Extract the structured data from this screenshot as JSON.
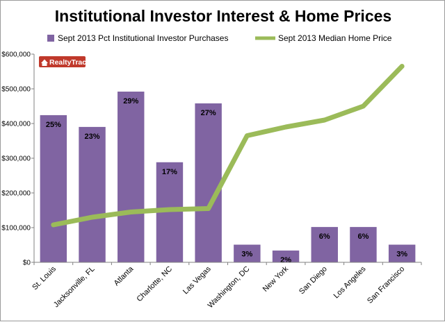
{
  "chart_data": {
    "type": "bar",
    "title": "Institutional Investor Interest & Home Prices",
    "categories": [
      "St. Louis",
      "Jacksonville, FL",
      "Atlanta",
      "Charlotte, NC",
      "Las Vegas",
      "Washington, DC",
      "New York",
      "San Diego",
      "Los Angeles",
      "San Francisco"
    ],
    "series": [
      {
        "name": "Sept 2013 Pct Institutional Investor Purchases",
        "type": "bar",
        "color": "#8064a2",
        "values": [
          25,
          23,
          29,
          17,
          27,
          3,
          2,
          6,
          6,
          3
        ],
        "labels": [
          "25%",
          "23%",
          "29%",
          "17%",
          "27%",
          "3%",
          "2%",
          "6%",
          "6%",
          "3%"
        ]
      },
      {
        "name": "Sept 2013 Median Home Price",
        "type": "line",
        "color": "#9bbb59",
        "values": [
          108000,
          130000,
          145000,
          152000,
          155000,
          365000,
          390000,
          410000,
          450000,
          565000
        ]
      }
    ],
    "ylim": [
      0,
      600000
    ],
    "yticks": [
      0,
      100000,
      200000,
      300000,
      400000,
      500000,
      600000
    ],
    "ytick_labels": [
      "$0",
      "$100,000",
      "$200,000",
      "$300,000",
      "$400,000",
      "$500,000",
      "$600,000"
    ],
    "legend_position": "top",
    "grid": false
  },
  "logo": {
    "text": "RealtyTrac",
    "icon": "house-icon",
    "color": "#c0392b"
  }
}
